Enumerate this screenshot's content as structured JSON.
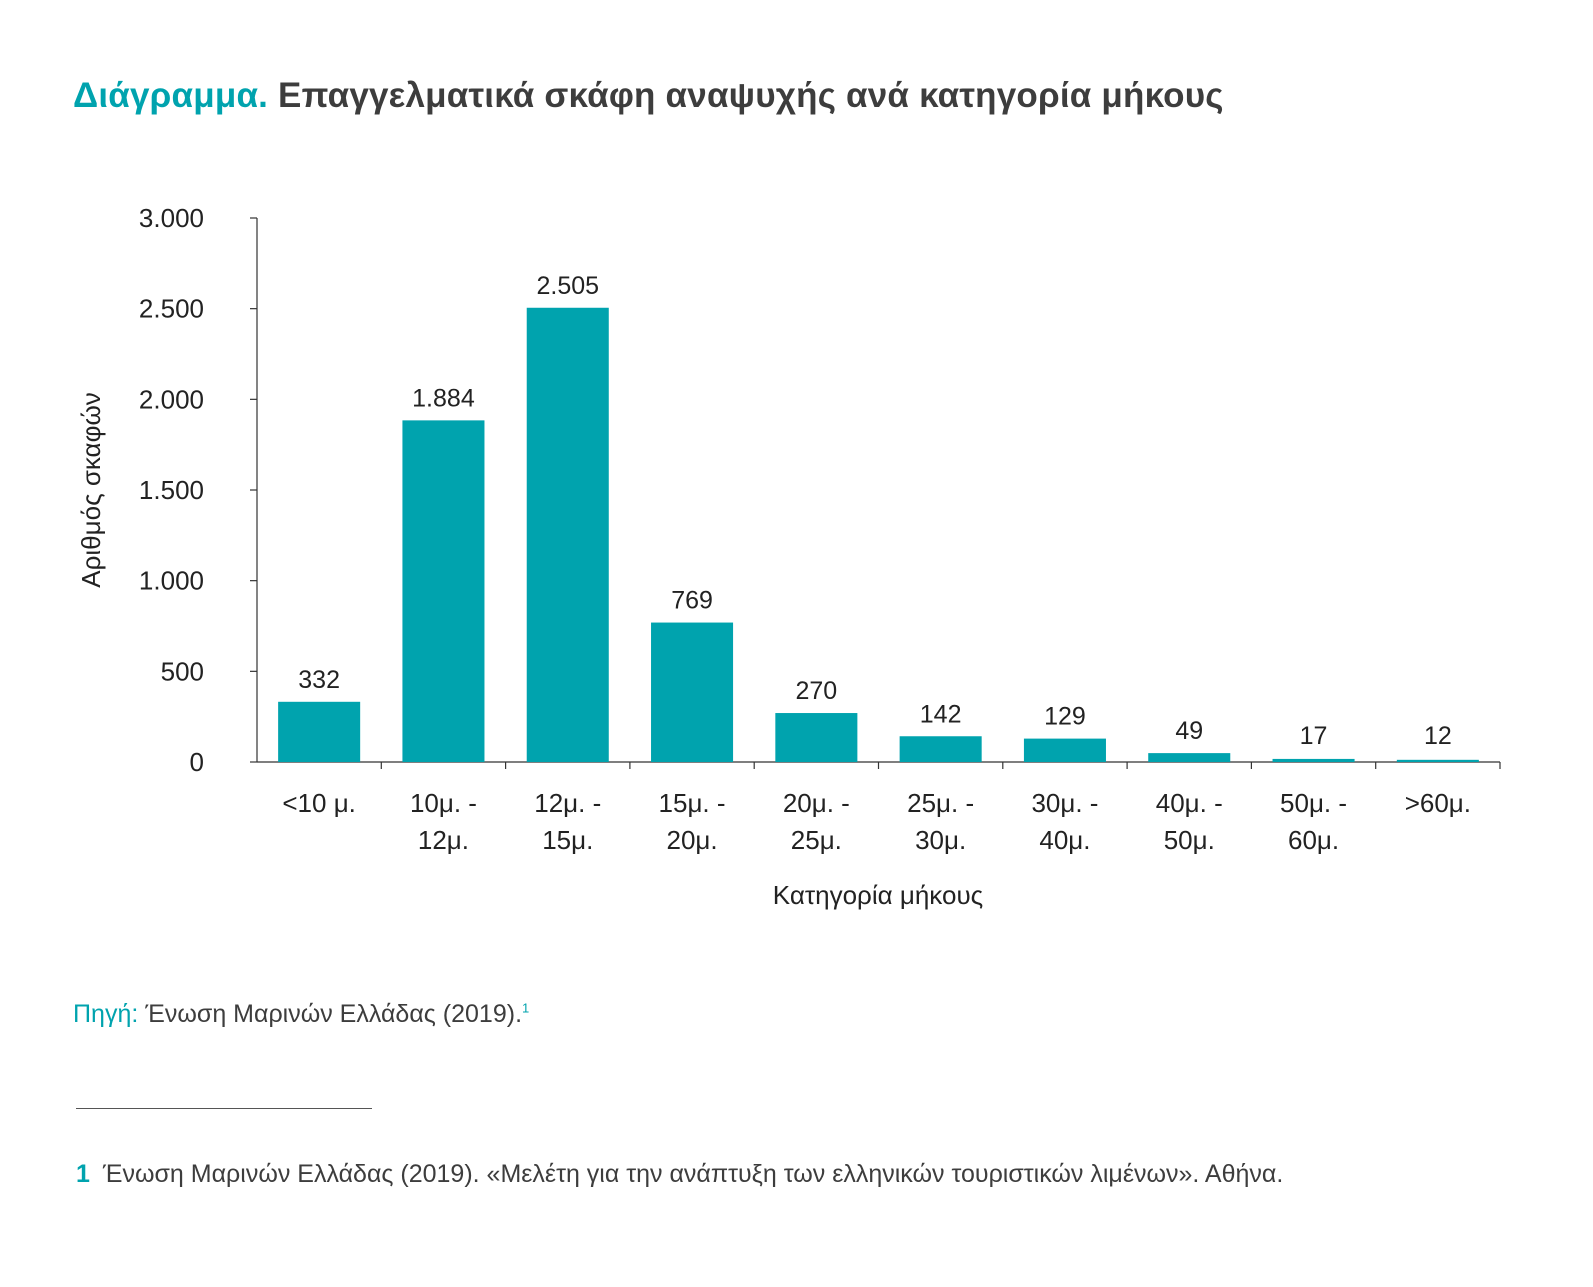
{
  "header": {
    "title_prefix": "Διάγραμμα.",
    "title_main": "Επαγγελματικά σκάφη αναψυχής ανά κατηγορία μήκους"
  },
  "chart_data": {
    "type": "bar",
    "xlabel": "Κατηγορία μήκους",
    "ylabel": "Αριθμός σκαφών",
    "ylim": [
      0,
      3000
    ],
    "yticks": [
      0,
      500,
      1000,
      1500,
      2000,
      2500,
      3000
    ],
    "ytick_labels": [
      "0",
      "500",
      "1.000",
      "1.500",
      "2.000",
      "2.500",
      "3.000"
    ],
    "categories": [
      [
        "<10 μ."
      ],
      [
        "10μ. -",
        "12μ."
      ],
      [
        "12μ. -",
        "15μ."
      ],
      [
        "15μ. -",
        "20μ."
      ],
      [
        "20μ. -",
        "25μ."
      ],
      [
        "25μ. -",
        "30μ."
      ],
      [
        "30μ. -",
        "40μ."
      ],
      [
        "40μ. -",
        "50μ."
      ],
      [
        "50μ. -",
        "60μ."
      ],
      [
        ">60μ."
      ]
    ],
    "values": [
      332,
      1884,
      2505,
      769,
      270,
      142,
      129,
      49,
      17,
      12
    ],
    "value_labels": [
      "332",
      "1.884",
      "2.505",
      "769",
      "270",
      "142",
      "129",
      "49",
      "17",
      "12"
    ],
    "bar_color": "#00a3ae",
    "grid": false,
    "legend": "none"
  },
  "source": {
    "label": "Πηγή:",
    "text": "Ένωση Μαρινών Ελλάδας (2019).",
    "ref": "1"
  },
  "footnote": {
    "number": "1",
    "text": "Ένωση Μαρινών Ελλάδας (2019). «Μελέτη για την ανάπτυξη των ελληνικών τουριστικών λιμένων». Αθήνα."
  }
}
